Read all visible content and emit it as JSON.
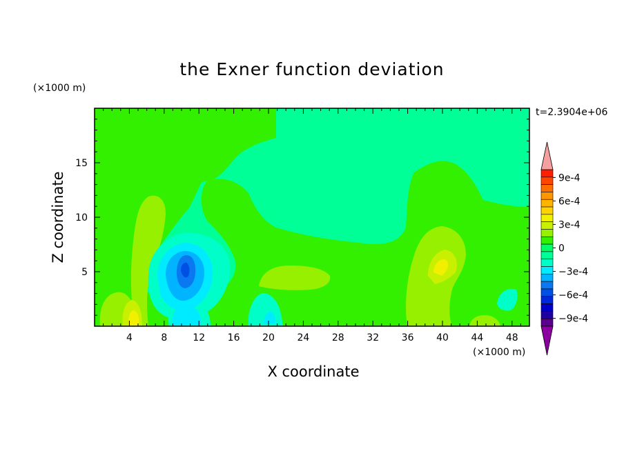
{
  "chart_data": {
    "type": "heatmap",
    "title": "the Exner function deviation",
    "xlabel": "X coordinate",
    "ylabel": "Z coordinate",
    "x_unit": "(×1000 m)",
    "y_unit": "(×1000 m)",
    "time_label": "t=2.3904e+06",
    "xlim": [
      0,
      50
    ],
    "ylim": [
      0,
      20
    ],
    "x_ticks": [
      4,
      8,
      12,
      16,
      20,
      24,
      28,
      32,
      36,
      40,
      44,
      48
    ],
    "y_ticks": [
      5,
      10,
      15
    ],
    "x_minor_step": 1,
    "y_minor_step": 1,
    "colorbar": {
      "levels": [
        -0.0011,
        -0.001,
        -0.0009,
        -0.0008,
        -0.0007,
        -0.0006,
        -0.0005,
        -0.0004,
        -0.0003,
        -0.0002,
        -0.0001,
        0,
        0.0001,
        0.0002,
        0.0003,
        0.0004,
        0.0005,
        0.0006,
        0.0007,
        0.0008,
        0.0009,
        0.001,
        0.0011
      ],
      "labels": [
        "9e-4",
        "6e-4",
        "3e-4",
        "0",
        "−3e-4",
        "−6e-4",
        "−9e-4"
      ],
      "label_values": [
        0.0009,
        0.0006,
        0.0003,
        0,
        -0.0003,
        -0.0006,
        -0.0009
      ],
      "under_color": "#8c00a0",
      "over_color": "#f4a0a0",
      "colors": [
        "#5a008c",
        "#1e00a0",
        "#0000c8",
        "#0028dc",
        "#0050e6",
        "#0a78f0",
        "#00b4ff",
        "#00ebff",
        "#00ffc8",
        "#00ff96",
        "#00ff64",
        "#32f000",
        "#96f000",
        "#c8f000",
        "#f0f000",
        "#ffd200",
        "#ffb400",
        "#ff9600",
        "#ff6e00",
        "#ff4600",
        "#ff1e00"
      ]
    },
    "field": [
      {
        "value": 5e-05,
        "region": "base"
      },
      {
        "value": -5e-05,
        "region": "upper-right"
      },
      {
        "value": 0.00015,
        "region": "upper-left"
      },
      {
        "value": 0.00025,
        "region": "left-ridge"
      },
      {
        "value": -0.00015,
        "region": "vortex-outer"
      },
      {
        "value": -0.00045,
        "region": "vortex-mid"
      },
      {
        "value": -0.00065,
        "region": "vortex-core"
      },
      {
        "value": 0.00045,
        "region": "surface-max"
      }
    ]
  },
  "colors": {
    "axis": "#000000",
    "background": "#ffffff"
  }
}
